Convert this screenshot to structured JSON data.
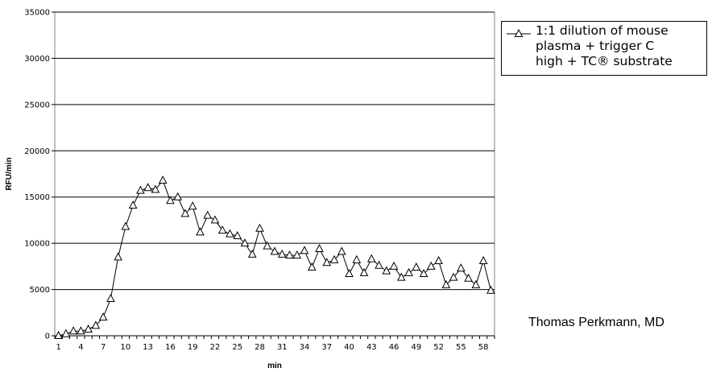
{
  "chart_data": {
    "type": "line",
    "xlabel": "min",
    "ylabel": "RFU/min",
    "xlim": [
      1,
      59
    ],
    "ylim": [
      0,
      35000
    ],
    "yticks": [
      0,
      5000,
      10000,
      15000,
      20000,
      25000,
      30000,
      35000
    ],
    "ytick_labels": [
      "0",
      "5000",
      "10000",
      "15000",
      "20000",
      "25000",
      "30000",
      "35000"
    ],
    "xticks": [
      1,
      4,
      7,
      10,
      13,
      16,
      19,
      22,
      25,
      28,
      31,
      34,
      37,
      40,
      43,
      46,
      49,
      52,
      55,
      58
    ],
    "xtick_labels": [
      "1",
      "4",
      "7",
      "10",
      "13",
      "16",
      "19",
      "22",
      "25",
      "28",
      "31",
      "34",
      "37",
      "40",
      "43",
      "46",
      "49",
      "52",
      "55",
      "58"
    ],
    "grid": "horizontal",
    "legend_position": "top-right",
    "x": [
      1,
      2,
      3,
      4,
      5,
      6,
      7,
      8,
      9,
      10,
      11,
      12,
      13,
      14,
      15,
      16,
      17,
      18,
      19,
      20,
      21,
      22,
      23,
      24,
      25,
      26,
      27,
      28,
      29,
      30,
      31,
      32,
      33,
      34,
      35,
      36,
      37,
      38,
      39,
      40,
      41,
      42,
      43,
      44,
      45,
      46,
      47,
      48,
      49,
      50,
      51,
      52,
      53,
      54,
      55,
      56,
      57,
      58,
      59
    ],
    "series": [
      {
        "name": "1:1 dilution of mouse plasma + trigger C high + TC® substrate",
        "marker": "triangle",
        "color": "#000000",
        "values": [
          0,
          200,
          500,
          500,
          700,
          1100,
          2000,
          4000,
          8500,
          11800,
          14100,
          15700,
          16000,
          15800,
          16800,
          14600,
          15000,
          13200,
          14000,
          11200,
          13000,
          12500,
          11400,
          11000,
          10800,
          10000,
          8800,
          11600,
          9700,
          9100,
          8800,
          8700,
          8700,
          9200,
          7400,
          9400,
          7900,
          8200,
          9100,
          6700,
          8200,
          6800,
          8300,
          7600,
          7000,
          7500,
          6300,
          6800,
          7400,
          6700,
          7500,
          8100,
          5500,
          6300,
          7300,
          6200,
          5500,
          8100,
          4900
        ]
      }
    ]
  },
  "legend": {
    "text": "1:1 dilution of mouse\nplasma + trigger C\nhigh + TC® substrate"
  },
  "credit": "Thomas Perkmann, MD"
}
